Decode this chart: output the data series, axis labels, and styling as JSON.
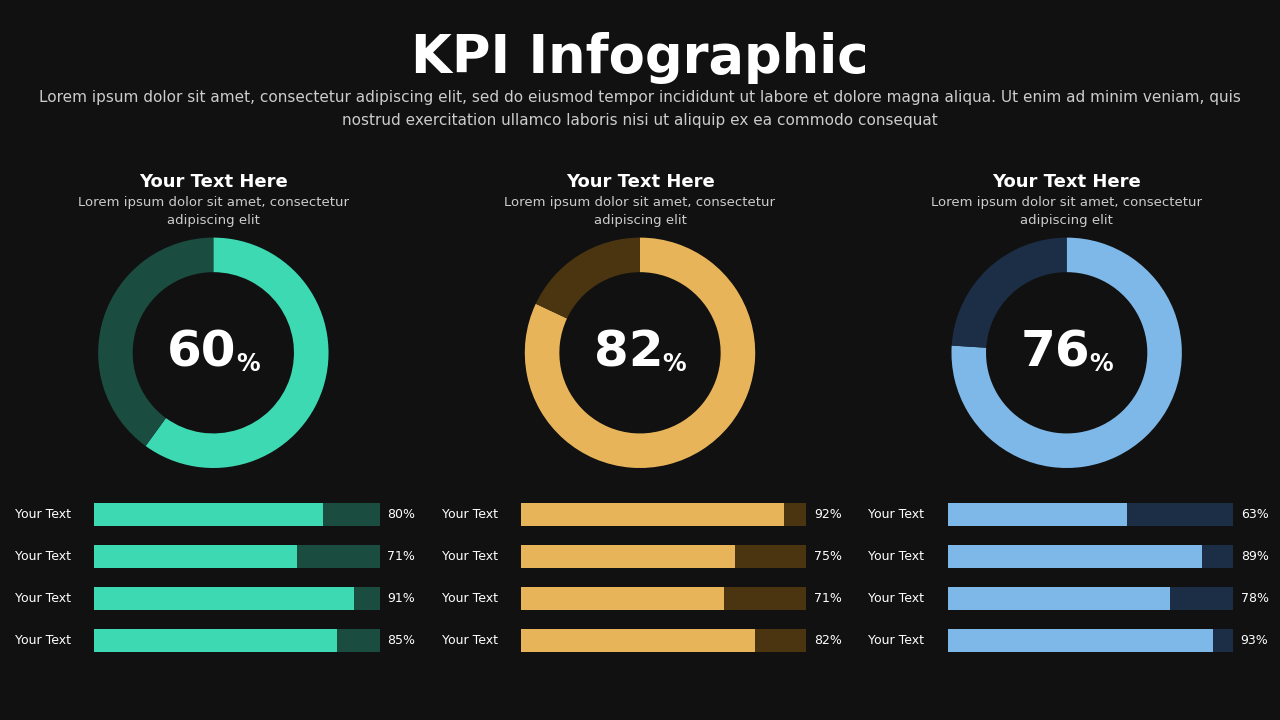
{
  "background_color": "#111111",
  "title": "KPI Infographic",
  "title_color": "#ffffff",
  "title_fontsize": 38,
  "subtitle": "Lorem ipsum dolor sit amet, consectetur adipiscing elit, sed do eiusmod tempor incididunt ut labore et dolore magna aliqua. Ut enim ad minim veniam, quis\nnostrud exercitation ullamco laboris nisi ut aliquip ex ea commodo consequat",
  "subtitle_color": "#cccccc",
  "subtitle_fontsize": 11,
  "charts": [
    {
      "title": "Your Text Here",
      "subtitle": "Lorem ipsum dolor sit amet, consectetur\nadipiscing elit",
      "value": 60,
      "color_filled": "#3dd9b3",
      "color_remaining": "#1a4d40",
      "bars": [
        {
          "label": "Your Text",
          "value": 80,
          "color": "#3dd9b3",
          "bg_color": "#1a4d40"
        },
        {
          "label": "Your Text",
          "value": 71,
          "color": "#3dd9b3",
          "bg_color": "#1a4d40"
        },
        {
          "label": "Your Text",
          "value": 91,
          "color": "#3dd9b3",
          "bg_color": "#1a4d40"
        },
        {
          "label": "Your Text",
          "value": 85,
          "color": "#3dd9b3",
          "bg_color": "#1a4d40"
        }
      ]
    },
    {
      "title": "Your Text Here",
      "subtitle": "Lorem ipsum dolor sit amet, consectetur\nadipiscing elit",
      "value": 82,
      "color_filled": "#e8b45a",
      "color_remaining": "#4a3510",
      "bars": [
        {
          "label": "Your Text",
          "value": 92,
          "color": "#e8b45a",
          "bg_color": "#4a3510"
        },
        {
          "label": "Your Text",
          "value": 75,
          "color": "#e8b45a",
          "bg_color": "#4a3510"
        },
        {
          "label": "Your Text",
          "value": 71,
          "color": "#e8b45a",
          "bg_color": "#4a3510"
        },
        {
          "label": "Your Text",
          "value": 82,
          "color": "#e8b45a",
          "bg_color": "#4a3510"
        }
      ]
    },
    {
      "title": "Your Text Here",
      "subtitle": "Lorem ipsum dolor sit amet, consectetur\nadipiscing elit",
      "value": 76,
      "color_filled": "#7eb8e8",
      "color_remaining": "#1c2e45",
      "bars": [
        {
          "label": "Your Text",
          "value": 63,
          "color": "#7eb8e8",
          "bg_color": "#1c2e45"
        },
        {
          "label": "Your Text",
          "value": 89,
          "color": "#7eb8e8",
          "bg_color": "#1c2e45"
        },
        {
          "label": "Your Text",
          "value": 78,
          "color": "#7eb8e8",
          "bg_color": "#1c2e45"
        },
        {
          "label": "Your Text",
          "value": 93,
          "color": "#7eb8e8",
          "bg_color": "#1c2e45"
        }
      ]
    }
  ]
}
